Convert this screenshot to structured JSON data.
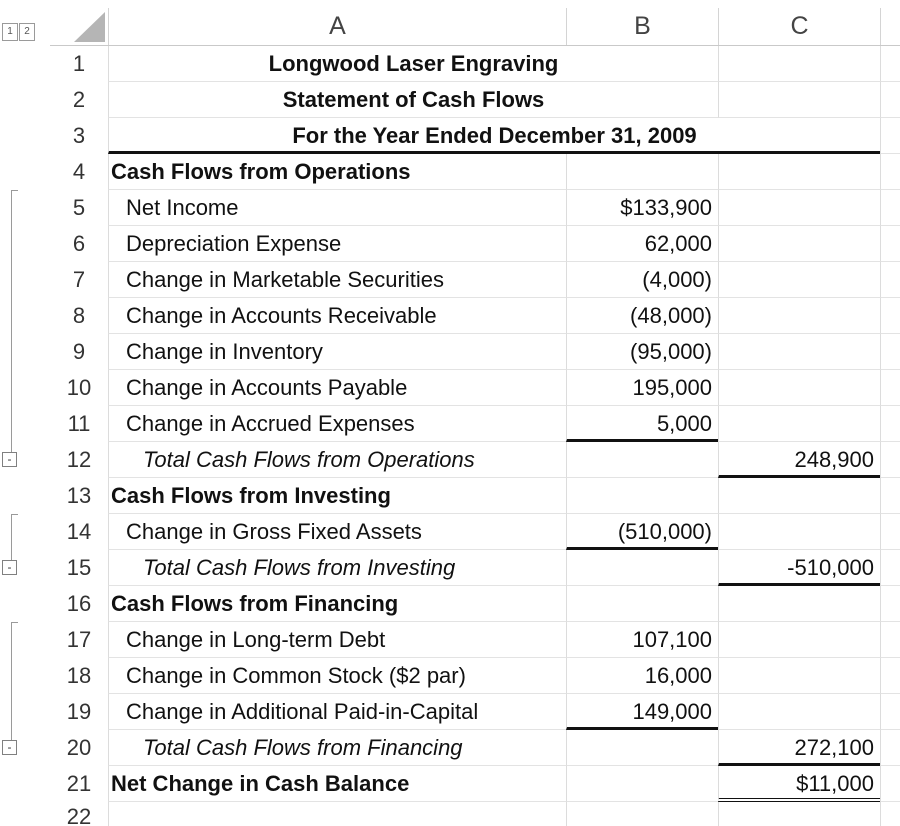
{
  "outline": {
    "levels": [
      "1",
      "2"
    ],
    "collapse_symbol": "-"
  },
  "columns": [
    "A",
    "B",
    "C"
  ],
  "rows": [
    {
      "n": "1",
      "a": "Longwood Laser Engraving",
      "b": "",
      "c": ""
    },
    {
      "n": "2",
      "a": "Statement of Cash Flows",
      "b": "",
      "c": ""
    },
    {
      "n": "3",
      "a": "For the Year Ended December 31, 2009",
      "b": "",
      "c": ""
    },
    {
      "n": "4",
      "a": "Cash Flows from Operations",
      "b": "",
      "c": ""
    },
    {
      "n": "5",
      "a": "Net Income",
      "b": "$133,900",
      "c": ""
    },
    {
      "n": "6",
      "a": "Depreciation Expense",
      "b": "62,000",
      "c": ""
    },
    {
      "n": "7",
      "a": "Change in Marketable Securities",
      "b": "(4,000)",
      "c": ""
    },
    {
      "n": "8",
      "a": "Change in Accounts Receivable",
      "b": "(48,000)",
      "c": ""
    },
    {
      "n": "9",
      "a": "Change in Inventory",
      "b": "(95,000)",
      "c": ""
    },
    {
      "n": "10",
      "a": "Change in Accounts Payable",
      "b": "195,000",
      "c": ""
    },
    {
      "n": "11",
      "a": "Change in Accrued Expenses",
      "b": "5,000",
      "c": ""
    },
    {
      "n": "12",
      "a": "Total Cash Flows from Operations",
      "b": "",
      "c": "248,900"
    },
    {
      "n": "13",
      "a": "Cash Flows from Investing",
      "b": "",
      "c": ""
    },
    {
      "n": "14",
      "a": "Change in Gross Fixed Assets",
      "b": "(510,000)",
      "c": ""
    },
    {
      "n": "15",
      "a": "Total Cash Flows from Investing",
      "b": "",
      "c": "-510,000"
    },
    {
      "n": "16",
      "a": "Cash Flows from Financing",
      "b": "",
      "c": ""
    },
    {
      "n": "17",
      "a": "Change in Long-term Debt",
      "b": "107,100",
      "c": ""
    },
    {
      "n": "18",
      "a": "Change in Common Stock ($2 par)",
      "b": "16,000",
      "c": ""
    },
    {
      "n": "19",
      "a": "Change in Additional Paid-in-Capital",
      "b": "149,000",
      "c": ""
    },
    {
      "n": "20",
      "a": "Total Cash Flows from Financing",
      "b": "",
      "c": "272,100"
    },
    {
      "n": "21",
      "a": "Net Change in Cash Balance",
      "b": "",
      "c": "$11,000"
    },
    {
      "n": "22",
      "a": "",
      "b": "",
      "c": ""
    }
  ]
}
